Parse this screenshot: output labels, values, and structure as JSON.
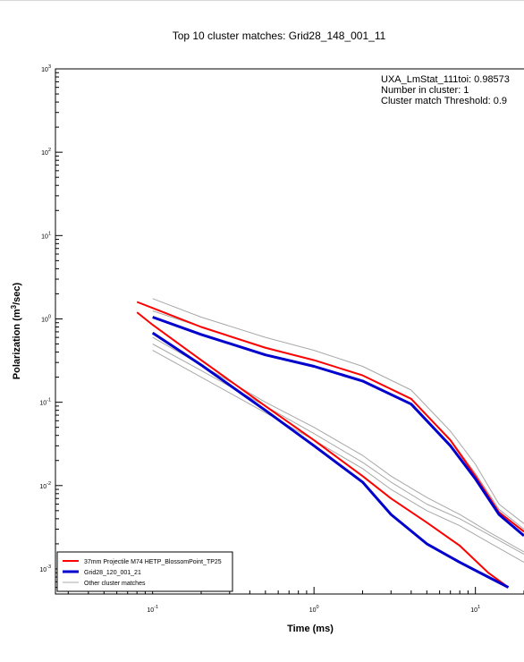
{
  "chart_data": {
    "type": "line",
    "title": "Top 10 cluster matches:  Grid28_148_001_11",
    "xlabel": "Time (ms)",
    "ylabel": "Polarization (m³/sec)",
    "x_scale": "log",
    "y_scale": "log",
    "xlim": [
      0.025,
      20
    ],
    "ylim": [
      0.0005,
      1000
    ],
    "x_ticks": [
      {
        "value": 0.1,
        "base": "10",
        "exp": "-1"
      },
      {
        "value": 1,
        "base": "10",
        "exp": "0"
      },
      {
        "value": 10,
        "base": "10",
        "exp": "1"
      }
    ],
    "y_ticks": [
      {
        "value": 1000,
        "base": "10",
        "exp": "3"
      },
      {
        "value": 100,
        "base": "10",
        "exp": "2"
      },
      {
        "value": 10,
        "base": "10",
        "exp": "1"
      },
      {
        "value": 1,
        "base": "10",
        "exp": "0"
      },
      {
        "value": 0.1,
        "base": "10",
        "exp": "-1"
      },
      {
        "value": 0.01,
        "base": "10",
        "exp": "-2"
      },
      {
        "value": 0.001,
        "base": "10",
        "exp": "-3"
      }
    ],
    "grid": false,
    "legend_position": "bottom-left",
    "annotations": [
      "UXA_LmStat_111toi: 0.98573",
      "Number in cluster: 1",
      "Cluster match Threshold: 0.9"
    ],
    "series": [
      {
        "name": "Other cluster matches",
        "color": "#a8a8a8",
        "curves": [
          {
            "x": [
              0.1,
              0.2,
              0.5,
              1,
              2,
              4,
              7,
              10,
              14,
              20
            ],
            "y": [
              1.75,
              1.05,
              0.6,
              0.42,
              0.27,
              0.14,
              0.045,
              0.018,
              0.006,
              0.0035
            ]
          },
          {
            "x": [
              0.1,
              0.2,
              0.5,
              1,
              2,
              4,
              7,
              10,
              14,
              20
            ],
            "y": [
              1.25,
              0.8,
              0.46,
              0.32,
              0.21,
              0.11,
              0.036,
              0.014,
              0.0052,
              0.003
            ]
          },
          {
            "x": [
              0.1,
              0.2,
              0.5,
              1,
              2,
              3,
              5,
              8,
              12,
              20
            ],
            "y": [
              0.42,
              0.2,
              0.075,
              0.035,
              0.016,
              0.009,
              0.005,
              0.0033,
              0.0021,
              0.0012
            ]
          },
          {
            "x": [
              0.1,
              0.2,
              0.5,
              1,
              2,
              3,
              5,
              8,
              12,
              20
            ],
            "y": [
              0.5,
              0.24,
              0.09,
              0.042,
              0.019,
              0.011,
              0.006,
              0.004,
              0.0026,
              0.0015
            ]
          },
          {
            "x": [
              0.1,
              0.2,
              0.5,
              1,
              2,
              3,
              5,
              8,
              12,
              20
            ],
            "y": [
              0.6,
              0.28,
              0.1,
              0.05,
              0.023,
              0.013,
              0.0072,
              0.0045,
              0.0028,
              0.0016
            ]
          }
        ]
      },
      {
        "name": "37mm Projectile M74 HETP_BlossomPoint_TP25",
        "color": "#ff0000",
        "curves": [
          {
            "x": [
              0.08,
              0.1,
              0.2,
              0.5,
              1,
              2,
              4,
              7,
              10,
              14,
              20
            ],
            "y": [
              1.6,
              1.35,
              0.8,
              0.45,
              0.32,
              0.21,
              0.11,
              0.035,
              0.013,
              0.0048,
              0.0028
            ]
          },
          {
            "x": [
              0.08,
              0.1,
              0.2,
              0.5,
              1,
              2,
              3,
              5,
              8,
              12,
              16
            ],
            "y": [
              1.2,
              0.85,
              0.32,
              0.09,
              0.035,
              0.013,
              0.007,
              0.0036,
              0.0019,
              0.0009,
              0.0006
            ]
          }
        ]
      },
      {
        "name": "Grid28_120_001_21",
        "color": "#0000cc",
        "curves": [
          {
            "x": [
              0.1,
              0.2,
              0.5,
              1,
              2,
              4,
              7,
              10,
              14,
              20
            ],
            "y": [
              1.05,
              0.65,
              0.37,
              0.27,
              0.18,
              0.095,
              0.03,
              0.012,
              0.0045,
              0.0025
            ]
          },
          {
            "x": [
              0.1,
              0.2,
              0.5,
              1,
              2,
              3,
              5,
              8,
              12,
              16
            ],
            "y": [
              0.68,
              0.28,
              0.08,
              0.03,
              0.011,
              0.0045,
              0.002,
              0.0012,
              0.0008,
              0.0006
            ]
          }
        ]
      }
    ]
  }
}
